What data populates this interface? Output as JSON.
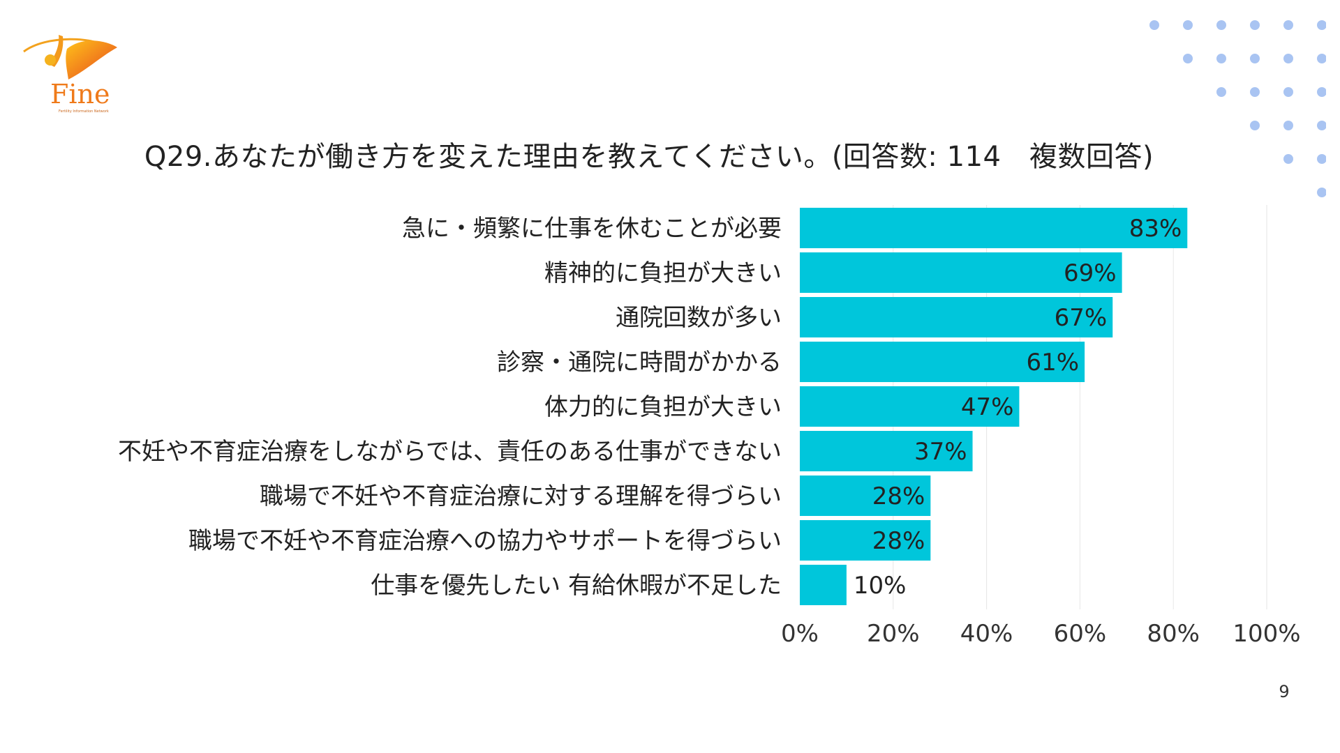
{
  "logo": {
    "text": "Fine",
    "subtext": "Fertility Information Network"
  },
  "page_number": "9",
  "colors": {
    "bar": "#00C6DB",
    "dots": "#A9C4F2",
    "grid": "#E6E6E6",
    "logo_orange": "#F08A1C"
  },
  "chart_data": {
    "type": "bar",
    "orientation": "horizontal",
    "title": "Q29.あなたが働き方を変えた理由を教えてください。(回答数: 114　複数回答)",
    "categories": [
      "急に・頻繁に仕事を休むことが必要",
      "精神的に負担が大きい",
      "通院回数が多い",
      "診察・通院に時間がかかる",
      "体力的に負担が大きい",
      "不妊や不育症治療をしながらでは、責任のある仕事ができない",
      "職場で不妊や不育症治療に対する理解を得づらい",
      "職場で不妊や不育症治療への協力やサポートを得づらい",
      "仕事を優先したい 有給休暇が不足した"
    ],
    "values": [
      83,
      69,
      67,
      61,
      47,
      37,
      28,
      28,
      10
    ],
    "value_labels": [
      "83%",
      "69%",
      "67%",
      "61%",
      "47%",
      "37%",
      "28%",
      "28%",
      "10%"
    ],
    "xlim": [
      0,
      100
    ],
    "xticks": [
      "0%",
      "20%",
      "40%",
      "60%",
      "80%",
      "100%"
    ],
    "grid": true,
    "legend": "none"
  }
}
